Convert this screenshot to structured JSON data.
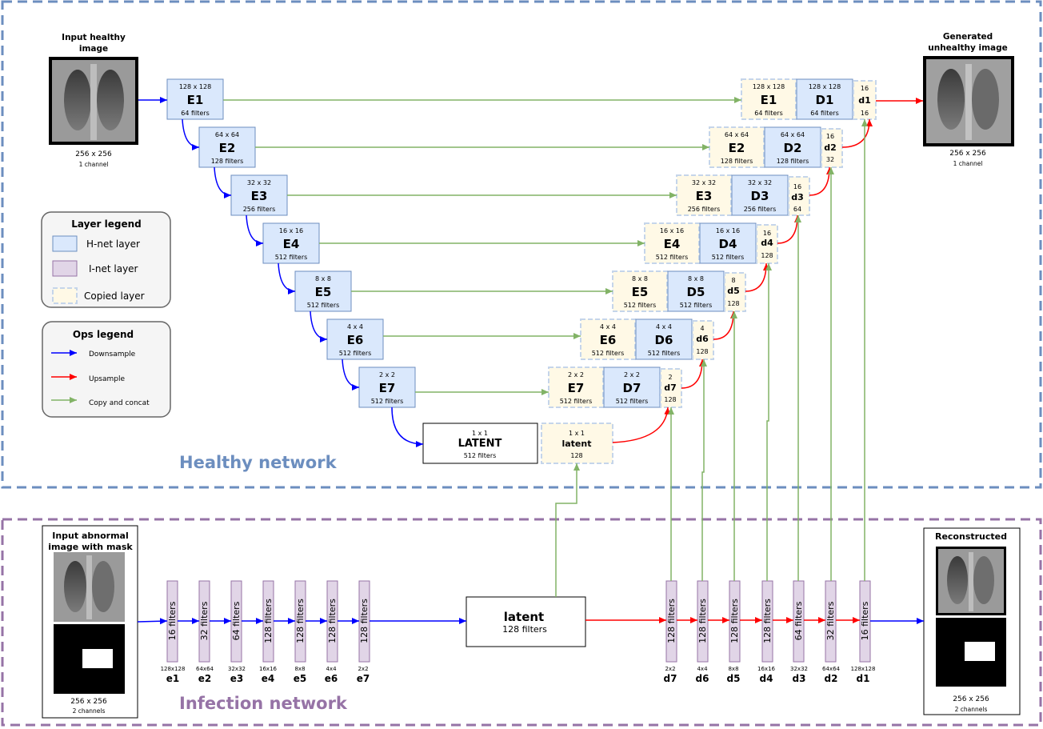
{
  "regions": {
    "healthy_title": "Healthy network",
    "infection_title": "Infection network",
    "colors": {
      "healthy": "#6c8ebf",
      "infection": "#9673a6"
    }
  },
  "input_healthy": {
    "title_line1": "Input healthy",
    "title_line2": "image",
    "size": "256 x 256",
    "channels": "1 channel"
  },
  "output_generated": {
    "title_line1": "Generated",
    "title_line2": "unhealthy image",
    "size": "256 x 256",
    "channels": "1 channel"
  },
  "input_abnormal": {
    "title_line1": "Input abnormal",
    "title_line2": "image with mask",
    "size": "256 x 256",
    "channels": "2 channels"
  },
  "output_reconstructed": {
    "title": "Reconstructed",
    "size": "256 x 256",
    "channels": "2 channels"
  },
  "encoder": [
    {
      "dims": "128 x 128",
      "name": "E1",
      "filters": "64 filters"
    },
    {
      "dims": "64 x 64",
      "name": "E2",
      "filters": "128 filters"
    },
    {
      "dims": "32 x 32",
      "name": "E3",
      "filters": "256 filters"
    },
    {
      "dims": "16 x 16",
      "name": "E4",
      "filters": "512 filters"
    },
    {
      "dims": "8 x 8",
      "name": "E5",
      "filters": "512 filters"
    },
    {
      "dims": "4 x 4",
      "name": "E6",
      "filters": "512 filters"
    },
    {
      "dims": "2 x 2",
      "name": "E7",
      "filters": "512 filters"
    }
  ],
  "latent": {
    "dims": "1 x 1",
    "name": "LATENT",
    "filters": "512 filters"
  },
  "latent_copy": {
    "dims": "1 x 1",
    "name": "latent",
    "filters": "128"
  },
  "decoder": [
    {
      "dims": "128 x 128",
      "name": "D1",
      "filters": "64 filters"
    },
    {
      "dims": "64 x 64",
      "name": "D2",
      "filters": "128 filters"
    },
    {
      "dims": "32 x 32",
      "name": "D3",
      "filters": "256 filters"
    },
    {
      "dims": "16 x 16",
      "name": "D4",
      "filters": "512 filters"
    },
    {
      "dims": "8 x 8",
      "name": "D5",
      "filters": "512 filters"
    },
    {
      "dims": "4 x 4",
      "name": "D6",
      "filters": "512 filters"
    },
    {
      "dims": "2 x 2",
      "name": "D7",
      "filters": "512 filters"
    }
  ],
  "copied_small": [
    {
      "top": "16",
      "name": "d1",
      "bottom": "16"
    },
    {
      "top": "16",
      "name": "d2",
      "bottom": "32"
    },
    {
      "top": "16",
      "name": "d3",
      "bottom": "64"
    },
    {
      "top": "16",
      "name": "d4",
      "bottom": "128"
    },
    {
      "top": "8",
      "name": "d5",
      "bottom": "128"
    },
    {
      "top": "4",
      "name": "d6",
      "bottom": "128"
    },
    {
      "top": "2",
      "name": "d7",
      "bottom": "128"
    }
  ],
  "inet_encoder": [
    {
      "filters": "16 filters",
      "dims": "128x128",
      "name": "e1"
    },
    {
      "filters": "32 filters",
      "dims": "64x64",
      "name": "e2"
    },
    {
      "filters": "64 filters",
      "dims": "32x32",
      "name": "e3"
    },
    {
      "filters": "128 filters",
      "dims": "16x16",
      "name": "e4"
    },
    {
      "filters": "128 filters",
      "dims": "8x8",
      "name": "e5"
    },
    {
      "filters": "128 filters",
      "dims": "4x4",
      "name": "e6"
    },
    {
      "filters": "128 filters",
      "dims": "2x2",
      "name": "e7"
    }
  ],
  "inet_latent": {
    "name": "latent",
    "filters": "128 filters"
  },
  "inet_decoder": [
    {
      "filters": "128 filters",
      "dims": "2x2",
      "name": "d7"
    },
    {
      "filters": "128 filters",
      "dims": "4x4",
      "name": "d6"
    },
    {
      "filters": "128 filters",
      "dims": "8x8",
      "name": "d5"
    },
    {
      "filters": "128 filters",
      "dims": "16x16",
      "name": "d4"
    },
    {
      "filters": "64 filters",
      "dims": "32x32",
      "name": "d3"
    },
    {
      "filters": "32 filters",
      "dims": "64x64",
      "name": "d2"
    },
    {
      "filters": "16 filters",
      "dims": "128x128",
      "name": "d1"
    }
  ],
  "layer_legend": {
    "title": "Layer legend",
    "items": [
      {
        "label": "H-net layer",
        "color": "#dae8fc"
      },
      {
        "label": "I-net layer",
        "color": "#e1d5e7"
      },
      {
        "label": "Copied layer",
        "color": "#fff9e6"
      }
    ]
  },
  "ops_legend": {
    "title": "Ops legend",
    "items": [
      {
        "label": "Downsample",
        "color": "#0000ff"
      },
      {
        "label": "Upsample",
        "color": "#ff0000"
      },
      {
        "label": "Copy and concat",
        "color": "#82b366"
      }
    ]
  }
}
